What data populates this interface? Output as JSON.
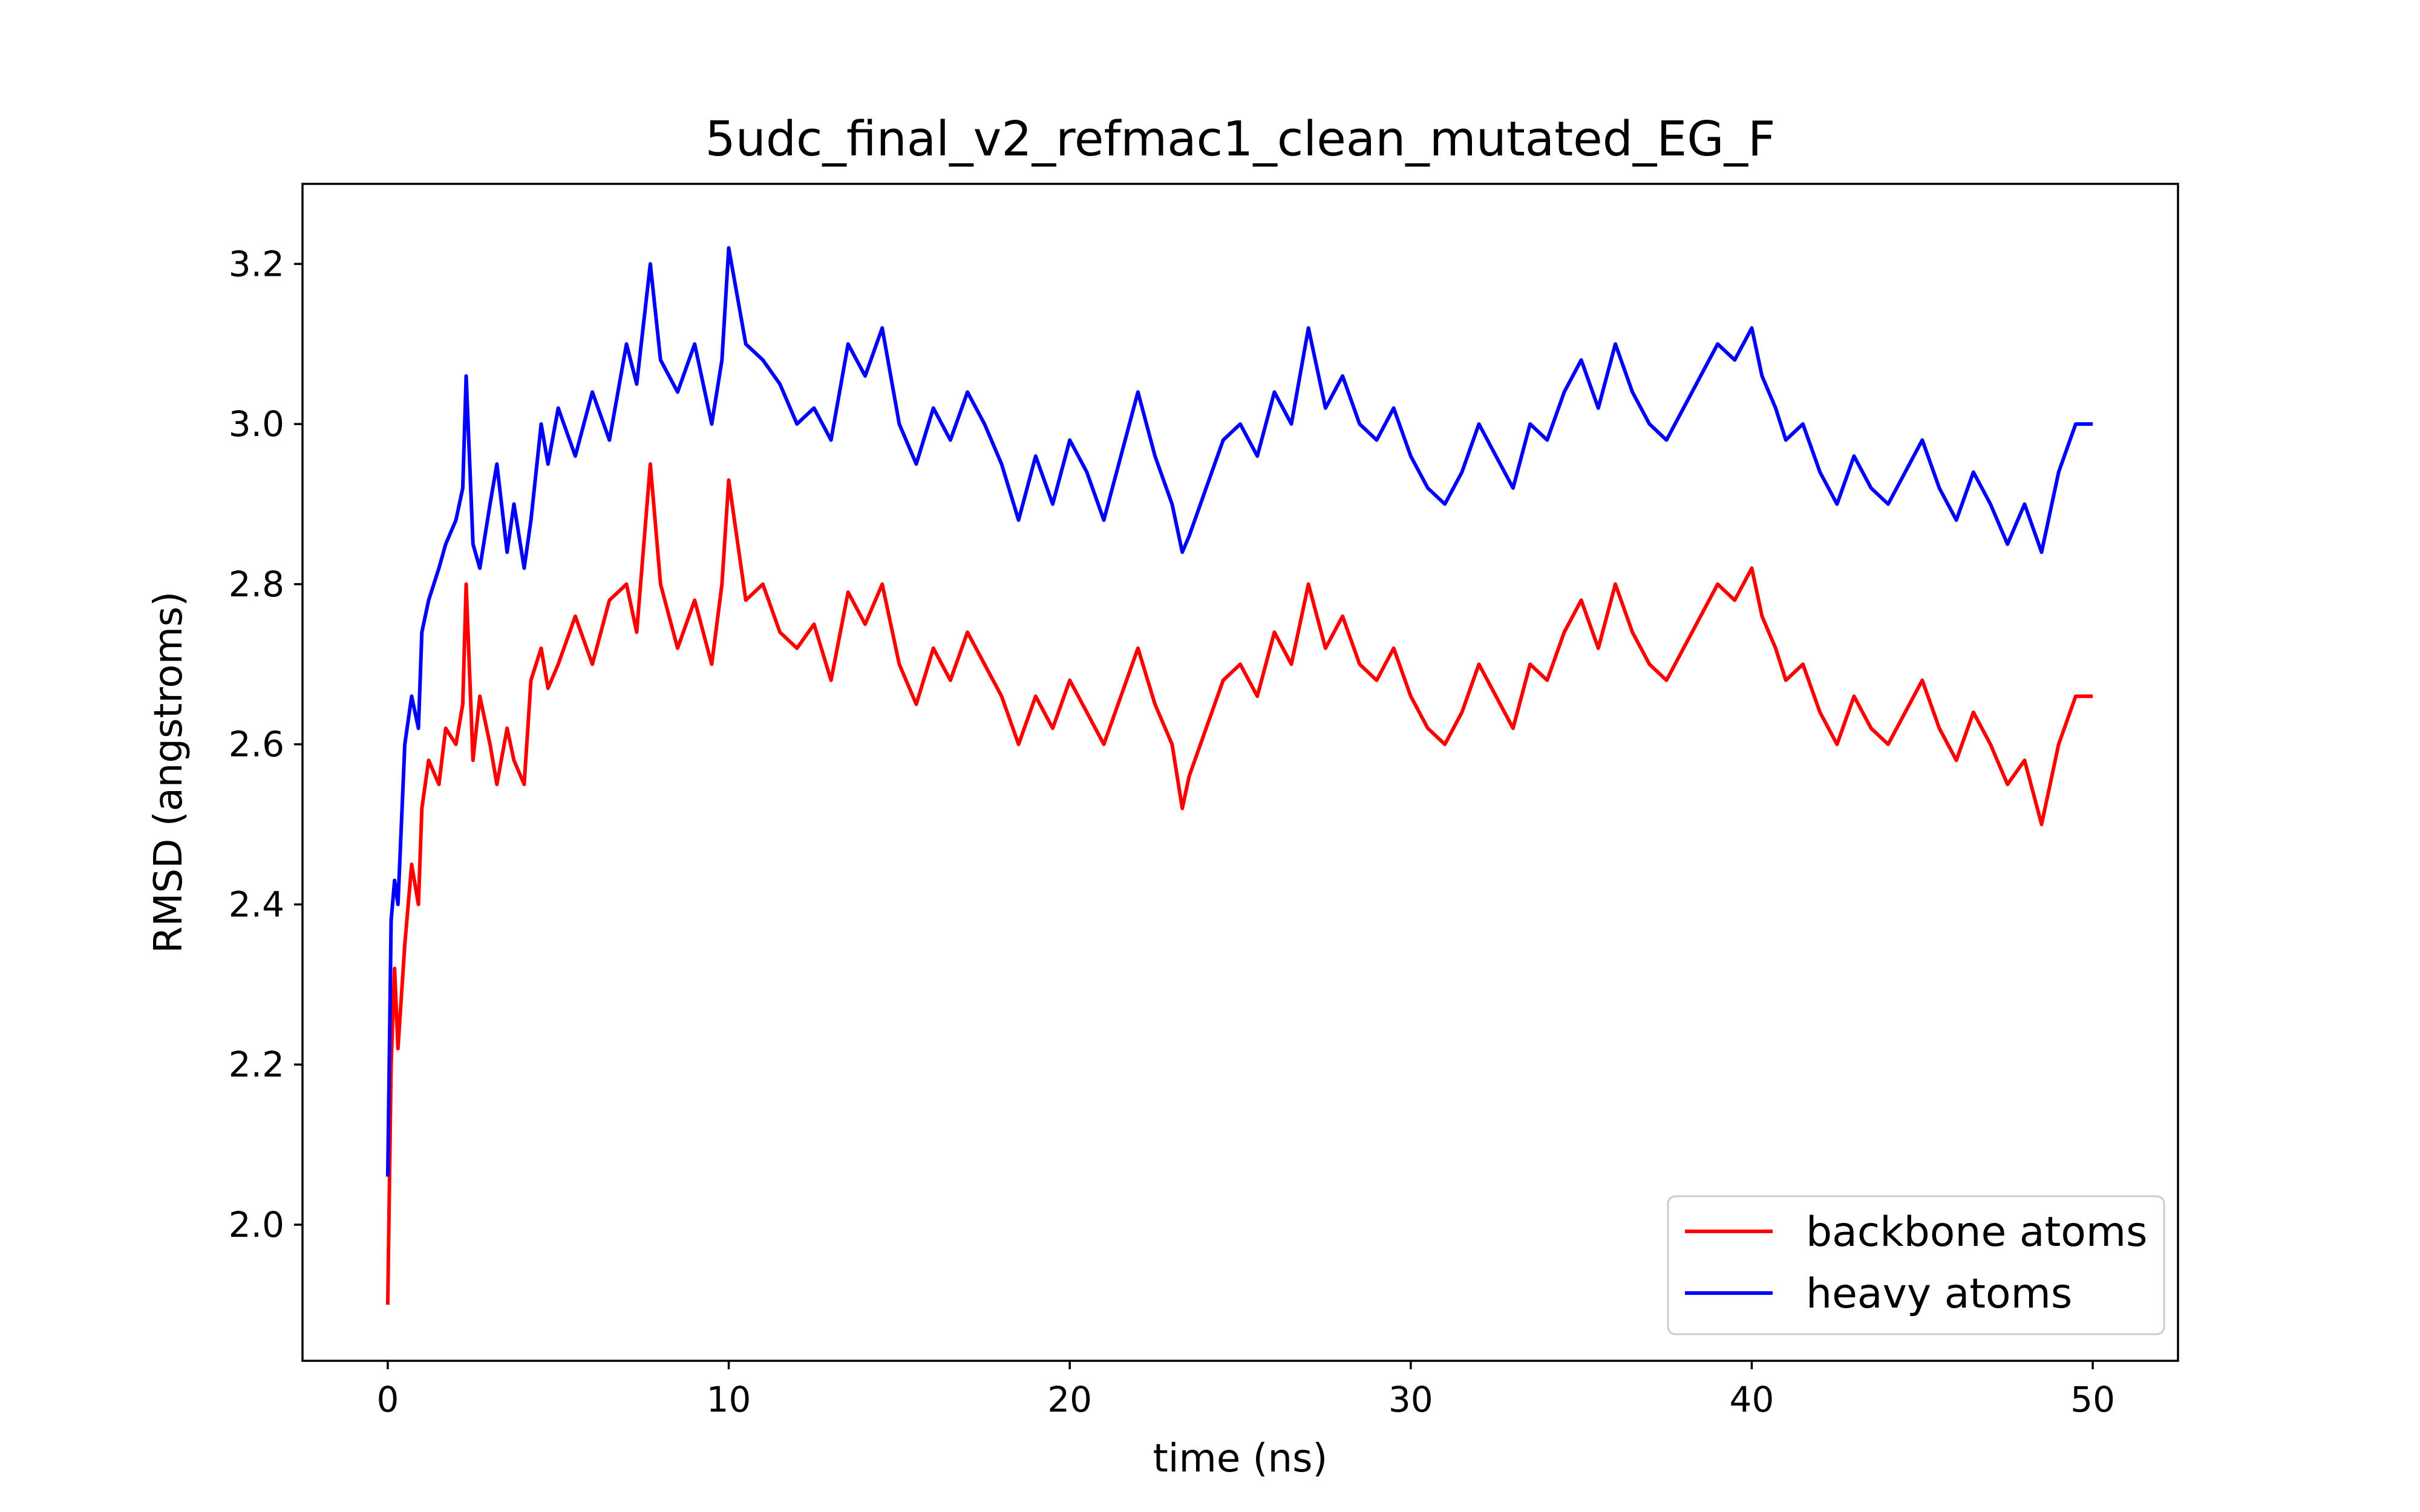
{
  "chart_data": {
    "type": "line",
    "title": "5udc_final_v2_refmac1_clean_mutated_EG_F",
    "xlabel": "time (ns)",
    "ylabel": "RMSD (angstroms)",
    "xlim": [
      -2.5,
      52.5
    ],
    "ylim": [
      1.83,
      3.3
    ],
    "xticks": [
      0,
      10,
      20,
      30,
      40,
      50
    ],
    "yticks": [
      "2.0",
      "2.2",
      "2.4",
      "2.6",
      "2.8",
      "3.0",
      "3.2"
    ],
    "grid": false,
    "legend_position": "lower-right",
    "series": [
      {
        "name": "backbone atoms",
        "color": "#ff0000",
        "x": [
          0,
          0.1,
          0.2,
          0.3,
          0.5,
          0.7,
          0.9,
          1.0,
          1.2,
          1.5,
          1.7,
          2.0,
          2.2,
          2.3,
          2.5,
          2.7,
          3.0,
          3.2,
          3.5,
          3.7,
          4.0,
          4.2,
          4.5,
          4.7,
          5.0,
          5.5,
          6.0,
          6.5,
          7.0,
          7.3,
          7.7,
          8.0,
          8.5,
          9.0,
          9.5,
          9.8,
          10.0,
          10.5,
          11.0,
          11.5,
          12.0,
          12.5,
          13.0,
          13.5,
          14.0,
          14.5,
          15.0,
          15.5,
          16.0,
          16.5,
          17.0,
          17.5,
          18.0,
          18.5,
          19.0,
          19.5,
          20.0,
          20.5,
          21.0,
          21.5,
          22.0,
          22.5,
          23.0,
          23.3,
          23.5,
          24.0,
          24.5,
          25.0,
          25.5,
          26.0,
          26.5,
          27.0,
          27.5,
          28.0,
          28.5,
          29.0,
          29.5,
          30.0,
          30.5,
          31.0,
          31.5,
          32.0,
          32.5,
          33.0,
          33.5,
          34.0,
          34.5,
          35.0,
          35.5,
          36.0,
          36.5,
          37.0,
          37.5,
          38.0,
          38.5,
          39.0,
          39.5,
          40.0,
          40.3,
          40.7,
          41.0,
          41.5,
          42.0,
          42.5,
          43.0,
          43.5,
          44.0,
          44.5,
          45.0,
          45.5,
          46.0,
          46.5,
          47.0,
          47.5,
          48.0,
          48.5,
          49.0,
          49.5,
          50.0
        ],
        "y": [
          1.9,
          2.2,
          2.32,
          2.22,
          2.35,
          2.45,
          2.4,
          2.52,
          2.58,
          2.55,
          2.62,
          2.6,
          2.65,
          2.8,
          2.58,
          2.66,
          2.6,
          2.55,
          2.62,
          2.58,
          2.55,
          2.68,
          2.72,
          2.67,
          2.7,
          2.76,
          2.7,
          2.78,
          2.8,
          2.74,
          2.95,
          2.8,
          2.72,
          2.78,
          2.7,
          2.8,
          2.93,
          2.78,
          2.8,
          2.74,
          2.72,
          2.75,
          2.68,
          2.79,
          2.75,
          2.8,
          2.7,
          2.65,
          2.72,
          2.68,
          2.74,
          2.7,
          2.66,
          2.6,
          2.66,
          2.62,
          2.68,
          2.64,
          2.6,
          2.66,
          2.72,
          2.65,
          2.6,
          2.52,
          2.56,
          2.62,
          2.68,
          2.7,
          2.66,
          2.74,
          2.7,
          2.8,
          2.72,
          2.76,
          2.7,
          2.68,
          2.72,
          2.66,
          2.62,
          2.6,
          2.64,
          2.7,
          2.66,
          2.62,
          2.7,
          2.68,
          2.74,
          2.78,
          2.72,
          2.8,
          2.74,
          2.7,
          2.68,
          2.72,
          2.76,
          2.8,
          2.78,
          2.82,
          2.76,
          2.72,
          2.68,
          2.7,
          2.64,
          2.6,
          2.66,
          2.62,
          2.6,
          2.64,
          2.68,
          2.62,
          2.58,
          2.64,
          2.6,
          2.55,
          2.58,
          2.5,
          2.6,
          2.66,
          2.66
        ]
      },
      {
        "name": "heavy atoms",
        "color": "#0000ff",
        "x": [
          0,
          0.1,
          0.2,
          0.3,
          0.5,
          0.7,
          0.9,
          1.0,
          1.2,
          1.5,
          1.7,
          2.0,
          2.2,
          2.3,
          2.5,
          2.7,
          3.0,
          3.2,
          3.5,
          3.7,
          4.0,
          4.2,
          4.5,
          4.7,
          5.0,
          5.5,
          6.0,
          6.5,
          7.0,
          7.3,
          7.7,
          8.0,
          8.5,
          9.0,
          9.5,
          9.8,
          10.0,
          10.5,
          11.0,
          11.5,
          12.0,
          12.5,
          13.0,
          13.5,
          14.0,
          14.5,
          15.0,
          15.5,
          16.0,
          16.5,
          17.0,
          17.5,
          18.0,
          18.5,
          19.0,
          19.5,
          20.0,
          20.5,
          21.0,
          21.5,
          22.0,
          22.5,
          23.0,
          23.3,
          23.5,
          24.0,
          24.5,
          25.0,
          25.5,
          26.0,
          26.5,
          27.0,
          27.5,
          28.0,
          28.5,
          29.0,
          29.5,
          30.0,
          30.5,
          31.0,
          31.5,
          32.0,
          32.5,
          33.0,
          33.5,
          34.0,
          34.5,
          35.0,
          35.5,
          36.0,
          36.5,
          37.0,
          37.5,
          38.0,
          38.5,
          39.0,
          39.5,
          40.0,
          40.3,
          40.7,
          41.0,
          41.5,
          42.0,
          42.5,
          43.0,
          43.5,
          44.0,
          44.5,
          45.0,
          45.5,
          46.0,
          46.5,
          47.0,
          47.5,
          48.0,
          48.5,
          49.0,
          49.5,
          50.0
        ],
        "y": [
          2.06,
          2.38,
          2.43,
          2.4,
          2.6,
          2.66,
          2.62,
          2.74,
          2.78,
          2.82,
          2.85,
          2.88,
          2.92,
          3.06,
          2.85,
          2.82,
          2.9,
          2.95,
          2.84,
          2.9,
          2.82,
          2.88,
          3.0,
          2.95,
          3.02,
          2.96,
          3.04,
          2.98,
          3.1,
          3.05,
          3.2,
          3.08,
          3.04,
          3.1,
          3.0,
          3.08,
          3.22,
          3.1,
          3.08,
          3.05,
          3.0,
          3.02,
          2.98,
          3.1,
          3.06,
          3.12,
          3.0,
          2.95,
          3.02,
          2.98,
          3.04,
          3.0,
          2.95,
          2.88,
          2.96,
          2.9,
          2.98,
          2.94,
          2.88,
          2.96,
          3.04,
          2.96,
          2.9,
          2.84,
          2.86,
          2.92,
          2.98,
          3.0,
          2.96,
          3.04,
          3.0,
          3.12,
          3.02,
          3.06,
          3.0,
          2.98,
          3.02,
          2.96,
          2.92,
          2.9,
          2.94,
          3.0,
          2.96,
          2.92,
          3.0,
          2.98,
          3.04,
          3.08,
          3.02,
          3.1,
          3.04,
          3.0,
          2.98,
          3.02,
          3.06,
          3.1,
          3.08,
          3.12,
          3.06,
          3.02,
          2.98,
          3.0,
          2.94,
          2.9,
          2.96,
          2.92,
          2.9,
          2.94,
          2.98,
          2.92,
          2.88,
          2.94,
          2.9,
          2.85,
          2.9,
          2.84,
          2.94,
          3.0,
          3.0
        ]
      }
    ]
  }
}
